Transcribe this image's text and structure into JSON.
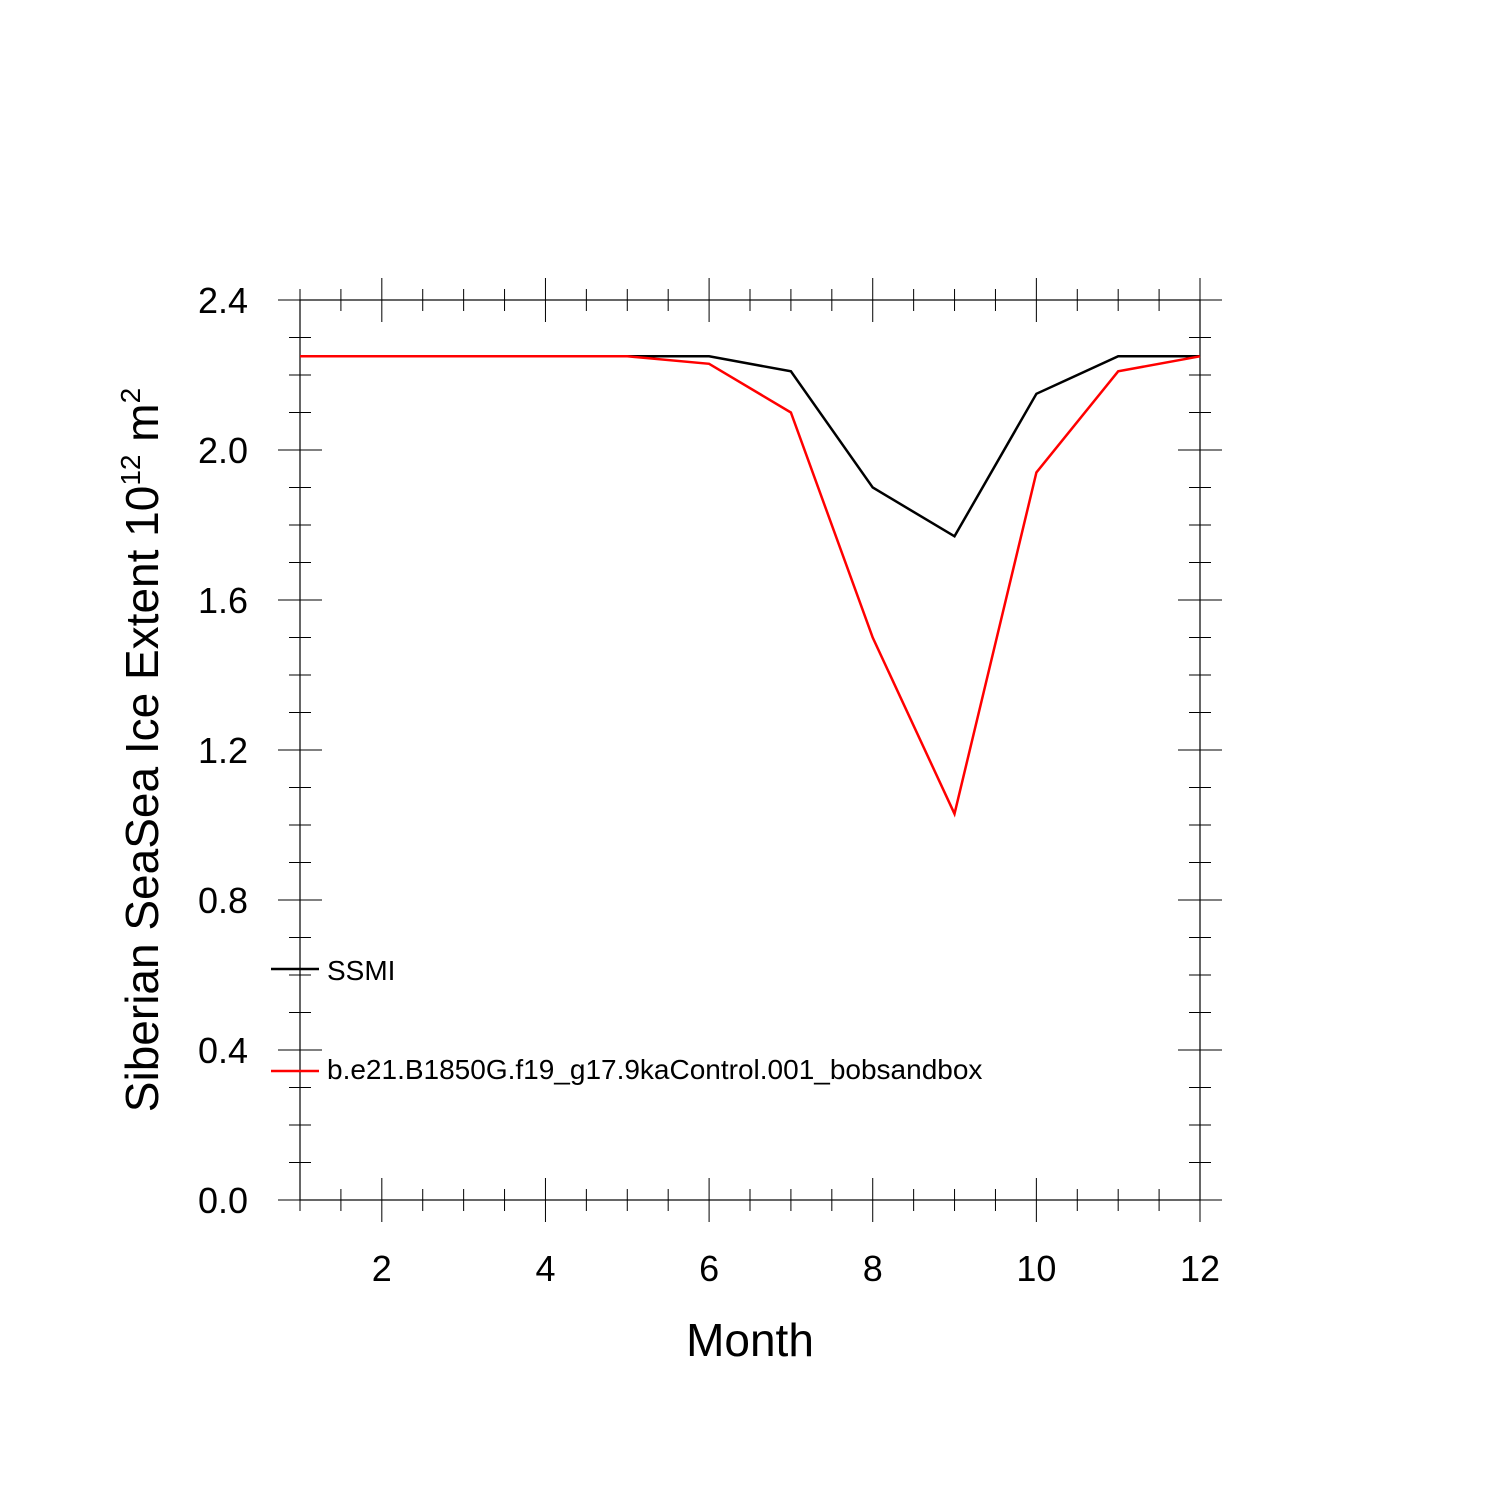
{
  "chart_data": {
    "type": "line",
    "xlabel": "Month",
    "ylabel": {
      "text": "Siberian SeaSea Ice Extent 10",
      "exponent": "12",
      "unit": " m",
      "unit_exponent": "2"
    },
    "xlim": [
      1,
      12
    ],
    "ylim": [
      0.0,
      2.4
    ],
    "x_ticks": [
      2,
      4,
      6,
      8,
      10,
      12
    ],
    "y_ticks": [
      "0.0",
      "0.4",
      "0.8",
      "1.2",
      "1.6",
      "2.0",
      "2.4"
    ],
    "x": [
      1,
      2,
      3,
      4,
      5,
      6,
      7,
      8,
      9,
      10,
      11,
      12
    ],
    "series": [
      {
        "name": "SSMI",
        "color": "#000000",
        "values": [
          2.25,
          2.25,
          2.25,
          2.25,
          2.25,
          2.25,
          2.21,
          1.9,
          1.77,
          2.15,
          2.25,
          2.25
        ]
      },
      {
        "name": "b.e21.B1850G.f19_g17.9kaControl.001_bobsandbox",
        "color": "#ff0000",
        "values": [
          2.25,
          2.25,
          2.25,
          2.25,
          2.25,
          2.23,
          2.1,
          1.5,
          1.03,
          1.94,
          2.21,
          2.25
        ]
      }
    ],
    "grid": false,
    "legend_position": "lower-left"
  }
}
